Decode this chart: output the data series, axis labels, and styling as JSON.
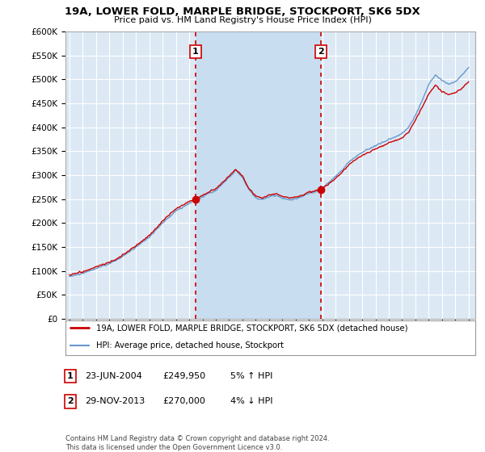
{
  "title": "19A, LOWER FOLD, MARPLE BRIDGE, STOCKPORT, SK6 5DX",
  "subtitle": "Price paid vs. HM Land Registry's House Price Index (HPI)",
  "ylim": [
    0,
    600000
  ],
  "yticks": [
    0,
    50000,
    100000,
    150000,
    200000,
    250000,
    300000,
    350000,
    400000,
    450000,
    500000,
    550000,
    600000
  ],
  "ytick_labels": [
    "£0",
    "£50K",
    "£100K",
    "£150K",
    "£200K",
    "£250K",
    "£300K",
    "£350K",
    "£400K",
    "£450K",
    "£500K",
    "£550K",
    "£600K"
  ],
  "plot_bg_color": "#dce9f5",
  "highlight_bg_color": "#c8ddf0",
  "grid_color": "#ffffff",
  "sale1_date_x": 2004.48,
  "sale1_price": 249950,
  "sale1_label": "1",
  "sale1_info": "23-JUN-2004",
  "sale1_price_str": "£249,950",
  "sale1_pct": "5% ↑ HPI",
  "sale2_date_x": 2013.91,
  "sale2_price": 270000,
  "sale2_label": "2",
  "sale2_info": "29-NOV-2013",
  "sale2_price_str": "£270,000",
  "sale2_pct": "4% ↓ HPI",
  "legend_line1": "19A, LOWER FOLD, MARPLE BRIDGE, STOCKPORT, SK6 5DX (detached house)",
  "legend_line2": "HPI: Average price, detached house, Stockport",
  "footnote": "Contains HM Land Registry data © Crown copyright and database right 2024.\nThis data is licensed under the Open Government Licence v3.0.",
  "line_color_red": "#cc0000",
  "line_color_blue": "#6699cc",
  "xtick_start": 1995,
  "xtick_end": 2025
}
